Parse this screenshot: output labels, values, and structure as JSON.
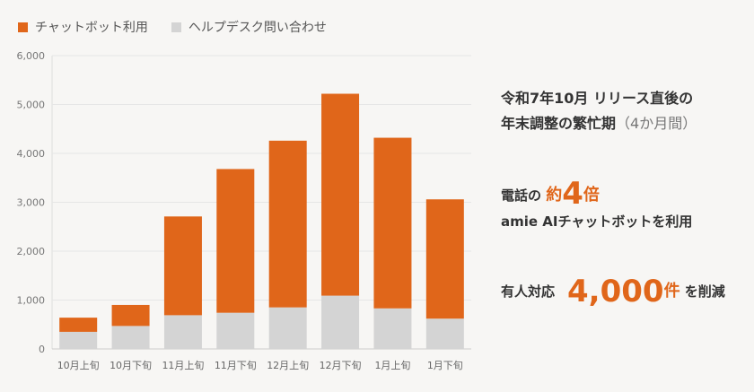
{
  "legend": {
    "chatbot": {
      "label": "チャットボット利用",
      "color": "#e0661a"
    },
    "helpdesk": {
      "label": "ヘルプデスク問い合わせ",
      "color": "#d4d4d4"
    }
  },
  "chart_data": {
    "type": "bar",
    "stacked": true,
    "categories": [
      "10月上旬",
      "10月下旬",
      "11月上旬",
      "11月下旬",
      "12月上旬",
      "12月下旬",
      "1月上旬",
      "1月下旬"
    ],
    "series": [
      {
        "name": "ヘルプデスク問い合わせ",
        "color": "#d4d4d4",
        "values": [
          350,
          470,
          690,
          740,
          850,
          1090,
          830,
          620
        ]
      },
      {
        "name": "チャットボット利用",
        "color": "#e0661a",
        "values": [
          290,
          430,
          2020,
          2940,
          3410,
          4130,
          3490,
          2440
        ]
      }
    ],
    "ylim": [
      0,
      6000
    ],
    "yticks": [
      "0",
      "1,000",
      "2,000",
      "3,000",
      "4,000",
      "5,000",
      "6,000"
    ],
    "grid": true,
    "legend_position": "top-left"
  },
  "summary": {
    "line1": "令和7年10月 リリース直後の",
    "line2_main": "年末調整の繁忙期",
    "line2_paren": "（4か月間）",
    "line3_pre": "電話の",
    "line3_em": "約",
    "line3_big": "4",
    "line3_post": "倍",
    "line4": "amie AIチャットボットを利用",
    "line5_pre": "有人対応",
    "line5_big": "4,000",
    "line5_unit": "件",
    "line5_post": "を削減"
  }
}
